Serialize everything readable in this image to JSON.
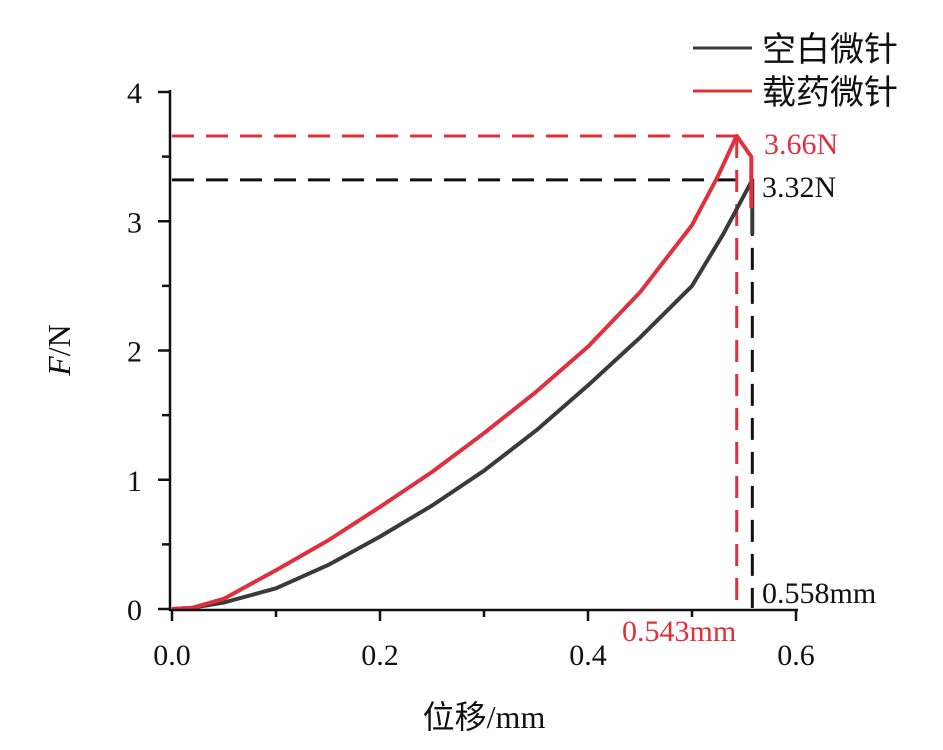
{
  "chart_data": {
    "type": "line",
    "xlabel": "位移/mm",
    "ylabel_italic": "F",
    "ylabel_rest": "/N",
    "xlim": [
      0,
      0.6
    ],
    "ylim": [
      0,
      4
    ],
    "x_ticks": [
      "0.0",
      "0.2",
      "0.4",
      "0.6"
    ],
    "y_ticks": [
      "0",
      "1",
      "2",
      "3",
      "4"
    ],
    "grid": false,
    "legend_position": "top-right",
    "series": [
      {
        "name": "空白微针",
        "color": "#3a3a3a",
        "points": [
          [
            0,
            0
          ],
          [
            0.02,
            0.01
          ],
          [
            0.05,
            0.05
          ],
          [
            0.1,
            0.16
          ],
          [
            0.15,
            0.34
          ],
          [
            0.2,
            0.56
          ],
          [
            0.25,
            0.8
          ],
          [
            0.3,
            1.07
          ],
          [
            0.35,
            1.38
          ],
          [
            0.4,
            1.73
          ],
          [
            0.45,
            2.1
          ],
          [
            0.5,
            2.5
          ],
          [
            0.53,
            2.9
          ],
          [
            0.558,
            3.32
          ],
          [
            0.558,
            2.9
          ]
        ]
      },
      {
        "name": "载药微针",
        "color": "#e0303e",
        "points": [
          [
            0,
            0
          ],
          [
            0.02,
            0.01
          ],
          [
            0.05,
            0.08
          ],
          [
            0.1,
            0.3
          ],
          [
            0.15,
            0.53
          ],
          [
            0.2,
            0.79
          ],
          [
            0.25,
            1.06
          ],
          [
            0.3,
            1.36
          ],
          [
            0.35,
            1.68
          ],
          [
            0.4,
            2.03
          ],
          [
            0.45,
            2.45
          ],
          [
            0.5,
            2.97
          ],
          [
            0.525,
            3.35
          ],
          [
            0.543,
            3.66
          ],
          [
            0.557,
            3.5
          ],
          [
            0.557,
            3.1
          ]
        ]
      }
    ],
    "annotations": [
      {
        "text": "3.66N",
        "x": 0.543,
        "y": 3.66,
        "color": "#e0303e"
      },
      {
        "text": "3.32N",
        "x": 0.558,
        "y": 3.32,
        "color": "#111111"
      },
      {
        "text": "0.558mm",
        "x": 0.558,
        "y": 0,
        "color": "#111111"
      },
      {
        "text": "0.543mm",
        "x": 0.543,
        "y": 0,
        "color": "#e0303e"
      }
    ]
  }
}
